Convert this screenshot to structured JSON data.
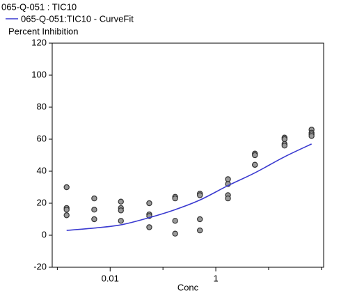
{
  "chart_data": {
    "type": "scatter",
    "title": "065-Q-051  :  TIC10",
    "y_label": "Percent Inhibition",
    "x_label": "Conc",
    "log_x": true,
    "xlim": [
      0.0008,
      110
    ],
    "ylim": [
      -20,
      120
    ],
    "xticks": [
      0.01,
      1
    ],
    "xminor_ticks": [
      0.001,
      0.1,
      10,
      100
    ],
    "yticks": [
      -20,
      0,
      20,
      40,
      60,
      80,
      100,
      120
    ],
    "points": {
      "color": "#9a9a9a",
      "x": [
        0.0015,
        0.0015,
        0.0015,
        0.0015,
        0.005,
        0.005,
        0.005,
        0.016,
        0.016,
        0.016,
        0.016,
        0.055,
        0.055,
        0.055,
        0.055,
        0.17,
        0.17,
        0.17,
        0.17,
        0.5,
        0.5,
        0.5,
        0.5,
        1.7,
        1.7,
        1.7,
        1.7,
        5.5,
        5.5,
        5.5,
        5.5,
        20,
        20,
        20,
        20,
        65,
        65,
        65,
        65
      ],
      "y": [
        30,
        17,
        16,
        12.5,
        23,
        16,
        10,
        21,
        17,
        15.5,
        9,
        20,
        13,
        12,
        5,
        24,
        23,
        9,
        1,
        26,
        25,
        10,
        3,
        35,
        32,
        25,
        23,
        51,
        50,
        44,
        44,
        61,
        60,
        57,
        56,
        66,
        64,
        63,
        62
      ]
    },
    "series": [
      {
        "name": "065-Q-051:TIC10 - CurveFit",
        "color": "#3a3ad0",
        "x": [
          0.0015,
          0.005,
          0.016,
          0.055,
          0.17,
          0.5,
          1.7,
          5.5,
          20,
          65
        ],
        "values": [
          3,
          4.5,
          6.5,
          11,
          16,
          22,
          31,
          39,
          49,
          57
        ]
      }
    ]
  }
}
